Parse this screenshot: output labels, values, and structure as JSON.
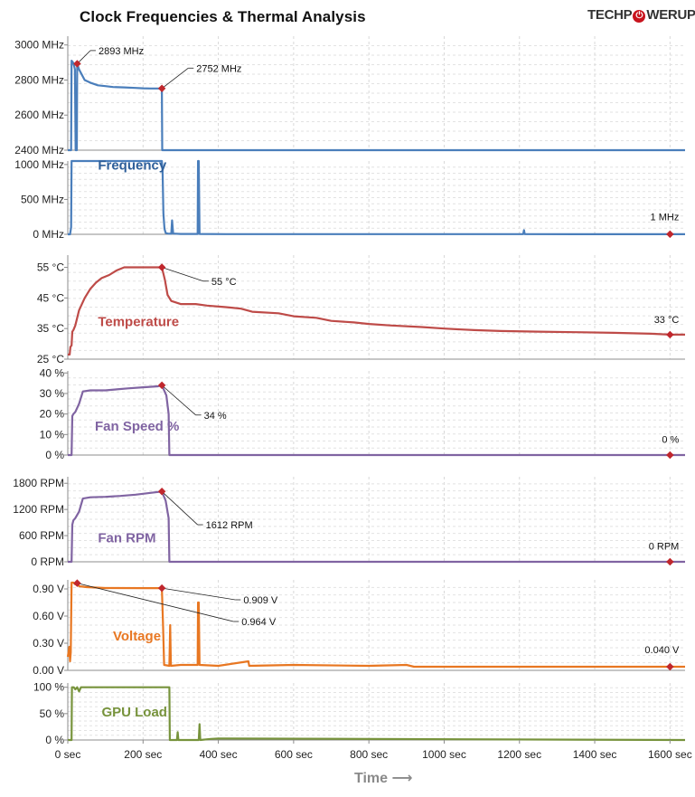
{
  "title": "Clock Frequencies & Thermal Analysis",
  "logo": {
    "text_left": "TECHP",
    "text_mid": "W",
    "text_right": "ERUP",
    "brand_color": "#c8141e"
  },
  "chart_data": {
    "type": "line",
    "xlabel": "Time",
    "xlabel_arrow": "⟶",
    "xlim": [
      0,
      1640
    ],
    "xticks": [
      0,
      200,
      400,
      600,
      800,
      1000,
      1200,
      1400,
      1600
    ],
    "xtick_labels": [
      "0 sec",
      "200 sec",
      "400 sec",
      "600 sec",
      "800 sec",
      "1000 sec",
      "1200 sec",
      "1400 sec",
      "1600 sec"
    ],
    "grid": true,
    "panels": [
      {
        "id": "frequency-high",
        "name": "Frequency",
        "show_label": false,
        "color": "#4a7ebb",
        "ylim": [
          2400,
          3050
        ],
        "yticks": [
          2400,
          2600,
          2800,
          3000
        ],
        "ytick_labels": [
          "2400 MHz",
          "2600 MHz",
          "2800 MHz",
          "3000 MHz"
        ],
        "points": [
          [
            0,
            2400
          ],
          [
            9,
            2400
          ],
          [
            10,
            2910
          ],
          [
            14,
            2900
          ],
          [
            17,
            2880
          ],
          [
            19,
            2860
          ],
          [
            21,
            2400
          ],
          [
            24,
            2400
          ],
          [
            25,
            2893
          ],
          [
            30,
            2860
          ],
          [
            45,
            2800
          ],
          [
            60,
            2785
          ],
          [
            80,
            2770
          ],
          [
            100,
            2765
          ],
          [
            120,
            2760
          ],
          [
            150,
            2758
          ],
          [
            180,
            2755
          ],
          [
            200,
            2753
          ],
          [
            220,
            2752
          ],
          [
            250,
            2752
          ],
          [
            251,
            2400
          ],
          [
            1640,
            2400
          ]
        ],
        "annotations": [
          {
            "x": 25,
            "y": 2893,
            "label": "2893 MHz",
            "side": "right",
            "lx": 60,
            "ly": 2968
          },
          {
            "x": 250,
            "y": 2752,
            "label": "2752 MHz",
            "side": "right",
            "lx": 320,
            "ly": 2868
          }
        ]
      },
      {
        "id": "frequency-low",
        "name": "Frequency",
        "label_text": "Frequency",
        "show_label": true,
        "color": "#4a7ebb",
        "label_x": 80,
        "label_y": 930,
        "ylim": [
          0,
          1050
        ],
        "yticks": [
          0,
          500,
          1000
        ],
        "ytick_labels": [
          "0 MHz",
          "500 MHz",
          "1000 MHz"
        ],
        "points": [
          [
            0,
            0
          ],
          [
            6,
            0
          ],
          [
            9,
            100
          ],
          [
            10,
            1050
          ],
          [
            250,
            1050
          ],
          [
            252,
            900
          ],
          [
            254,
            300
          ],
          [
            257,
            80
          ],
          [
            260,
            20
          ],
          [
            265,
            10
          ],
          [
            275,
            8
          ],
          [
            277,
            200
          ],
          [
            280,
            10
          ],
          [
            300,
            5
          ],
          [
            345,
            5
          ],
          [
            346,
            1050
          ],
          [
            348,
            1050
          ],
          [
            350,
            5
          ],
          [
            420,
            3
          ],
          [
            600,
            3
          ],
          [
            800,
            2
          ],
          [
            1000,
            2
          ],
          [
            1200,
            2
          ],
          [
            1210,
            2
          ],
          [
            1212,
            60
          ],
          [
            1214,
            2
          ],
          [
            1400,
            1
          ],
          [
            1600,
            1
          ],
          [
            1640,
            1
          ]
        ],
        "annotations": [
          {
            "x": 1600,
            "y": 1,
            "label": "1 MHz",
            "side": "above",
            "lx": 1600,
            "ly": 200
          }
        ]
      },
      {
        "id": "temperature",
        "name": "Temperature",
        "label_text": "Temperature",
        "show_label": true,
        "color": "#be4b48",
        "label_x": 80,
        "label_y": 35.8,
        "ylim": [
          25,
          59
        ],
        "yticks": [
          25,
          35,
          45,
          55
        ],
        "ytick_labels": [
          "25 °C",
          "35 °C",
          "45 °C",
          "55 °C"
        ],
        "points": [
          [
            0,
            26.5
          ],
          [
            5,
            26.5
          ],
          [
            7,
            29
          ],
          [
            10,
            29.5
          ],
          [
            12,
            34
          ],
          [
            15,
            34.5
          ],
          [
            20,
            36
          ],
          [
            30,
            41
          ],
          [
            45,
            45
          ],
          [
            60,
            48
          ],
          [
            75,
            50
          ],
          [
            90,
            51.5
          ],
          [
            110,
            52.5
          ],
          [
            130,
            54
          ],
          [
            150,
            55
          ],
          [
            180,
            55
          ],
          [
            220,
            55
          ],
          [
            250,
            55
          ],
          [
            258,
            51
          ],
          [
            265,
            46
          ],
          [
            275,
            44
          ],
          [
            300,
            43
          ],
          [
            340,
            43
          ],
          [
            370,
            42.5
          ],
          [
            420,
            42
          ],
          [
            460,
            41.5
          ],
          [
            490,
            40.5
          ],
          [
            560,
            40
          ],
          [
            600,
            39
          ],
          [
            660,
            38.5
          ],
          [
            700,
            37.5
          ],
          [
            760,
            37
          ],
          [
            800,
            36.5
          ],
          [
            860,
            36
          ],
          [
            940,
            35.5
          ],
          [
            1000,
            35
          ],
          [
            1080,
            34.5
          ],
          [
            1150,
            34.2
          ],
          [
            1250,
            34
          ],
          [
            1350,
            33.8
          ],
          [
            1450,
            33.6
          ],
          [
            1550,
            33.3
          ],
          [
            1600,
            33
          ],
          [
            1640,
            33
          ]
        ],
        "annotations": [
          {
            "x": 250,
            "y": 55,
            "label": "55 °C",
            "side": "right",
            "lx": 360,
            "ly": 50.5
          },
          {
            "x": 1600,
            "y": 33,
            "label": "33 °C",
            "side": "above",
            "lx": 1600,
            "ly": 36.8
          }
        ]
      },
      {
        "id": "fan-speed",
        "name": "Fan Speed %",
        "label_text": "Fan Speed %",
        "show_label": true,
        "color": "#8064a2",
        "label_x": 72,
        "label_y": 12,
        "ylim": [
          0,
          41
        ],
        "yticks": [
          0,
          10,
          20,
          30,
          40
        ],
        "ytick_labels": [
          "0 %",
          "10 %",
          "20 %",
          "30 %",
          "40 %"
        ],
        "points": [
          [
            0,
            0
          ],
          [
            10,
            0
          ],
          [
            12,
            19
          ],
          [
            15,
            20
          ],
          [
            20,
            21
          ],
          [
            30,
            25
          ],
          [
            40,
            31
          ],
          [
            60,
            31.5
          ],
          [
            100,
            31.5
          ],
          [
            130,
            32
          ],
          [
            160,
            32.5
          ],
          [
            200,
            33
          ],
          [
            240,
            33.5
          ],
          [
            250,
            34
          ],
          [
            262,
            29
          ],
          [
            268,
            20
          ],
          [
            270,
            0
          ],
          [
            1640,
            0
          ]
        ],
        "annotations": [
          {
            "x": 250,
            "y": 34,
            "label": "34 %",
            "side": "right",
            "lx": 340,
            "ly": 19.5
          },
          {
            "x": 1600,
            "y": 0,
            "label": "0 %",
            "side": "above",
            "lx": 1600,
            "ly": 6
          }
        ]
      },
      {
        "id": "fan-rpm",
        "name": "Fan RPM",
        "label_text": "Fan RPM",
        "show_label": true,
        "color": "#8064a2",
        "label_x": 80,
        "label_y": 450,
        "ylim": [
          0,
          1950
        ],
        "yticks": [
          0,
          600,
          1200,
          1800
        ],
        "ytick_labels": [
          "0 RPM",
          "600 RPM",
          "1200 RPM",
          "1800 RPM"
        ],
        "points": [
          [
            0,
            0
          ],
          [
            10,
            0
          ],
          [
            12,
            850
          ],
          [
            15,
            950
          ],
          [
            20,
            1000
          ],
          [
            30,
            1150
          ],
          [
            40,
            1450
          ],
          [
            60,
            1480
          ],
          [
            100,
            1490
          ],
          [
            140,
            1510
          ],
          [
            180,
            1540
          ],
          [
            220,
            1580
          ],
          [
            250,
            1612
          ],
          [
            260,
            1400
          ],
          [
            268,
            1000
          ],
          [
            270,
            0
          ],
          [
            1640,
            0
          ]
        ],
        "annotations": [
          {
            "x": 250,
            "y": 1612,
            "label": "1612 RPM",
            "side": "right",
            "lx": 345,
            "ly": 850
          },
          {
            "x": 1600,
            "y": 0,
            "label": "0 RPM",
            "side": "above",
            "lx": 1600,
            "ly": 280
          }
        ]
      },
      {
        "id": "voltage",
        "name": "Voltage",
        "label_text": "Voltage",
        "show_label": true,
        "color": "#e87722",
        "label_x": 120,
        "label_y": 0.33,
        "ylim": [
          0,
          1.0
        ],
        "yticks": [
          0,
          0.3,
          0.6,
          0.9
        ],
        "ytick_labels": [
          "0.00 V",
          "0.30 V",
          "0.60 V",
          "0.90 V"
        ],
        "points": [
          [
            0,
            0.15
          ],
          [
            4,
            0.26
          ],
          [
            6,
            0.1
          ],
          [
            8,
            0.2
          ],
          [
            10,
            0.97
          ],
          [
            15,
            0.97
          ],
          [
            20,
            0.95
          ],
          [
            25,
            0.964
          ],
          [
            30,
            0.93
          ],
          [
            50,
            0.92
          ],
          [
            100,
            0.91
          ],
          [
            200,
            0.909
          ],
          [
            250,
            0.909
          ],
          [
            253,
            0.5
          ],
          [
            256,
            0.06
          ],
          [
            270,
            0.05
          ],
          [
            272,
            0.5
          ],
          [
            274,
            0.05
          ],
          [
            300,
            0.06
          ],
          [
            345,
            0.06
          ],
          [
            346,
            0.75
          ],
          [
            348,
            0.75
          ],
          [
            350,
            0.06
          ],
          [
            400,
            0.05
          ],
          [
            480,
            0.1
          ],
          [
            482,
            0.05
          ],
          [
            600,
            0.06
          ],
          [
            800,
            0.05
          ],
          [
            900,
            0.06
          ],
          [
            920,
            0.04
          ],
          [
            1000,
            0.04
          ],
          [
            1200,
            0.04
          ],
          [
            1400,
            0.04
          ],
          [
            1600,
            0.04
          ],
          [
            1640,
            0.04
          ]
        ],
        "annotations": [
          {
            "x": 250,
            "y": 0.909,
            "label": "0.909 V",
            "side": "right",
            "lx": 445,
            "ly": 0.78
          },
          {
            "x": 25,
            "y": 0.964,
            "label": "0.964 V",
            "side": "right",
            "lx": 440,
            "ly": 0.54
          },
          {
            "x": 1600,
            "y": 0.04,
            "label": "0.040 V",
            "side": "above",
            "lx": 1600,
            "ly": 0.19
          }
        ]
      },
      {
        "id": "gpu-load",
        "name": "GPU Load",
        "label_text": "GPU Load",
        "show_label": true,
        "color": "#77933c",
        "label_x": 90,
        "label_y": 45,
        "ylim": [
          0,
          108
        ],
        "yticks": [
          0,
          50,
          100
        ],
        "ytick_labels": [
          "0 %",
          "50 %",
          "100 %"
        ],
        "points": [
          [
            0,
            0
          ],
          [
            10,
            0
          ],
          [
            11,
            100
          ],
          [
            16,
            100
          ],
          [
            20,
            96
          ],
          [
            25,
            100
          ],
          [
            30,
            92
          ],
          [
            35,
            100
          ],
          [
            270,
            100
          ],
          [
            271,
            0
          ],
          [
            290,
            0
          ],
          [
            292,
            15
          ],
          [
            294,
            0
          ],
          [
            348,
            0
          ],
          [
            350,
            30
          ],
          [
            352,
            0
          ],
          [
            380,
            2
          ],
          [
            400,
            3
          ],
          [
            1640,
            0
          ]
        ],
        "annotations": []
      }
    ]
  }
}
